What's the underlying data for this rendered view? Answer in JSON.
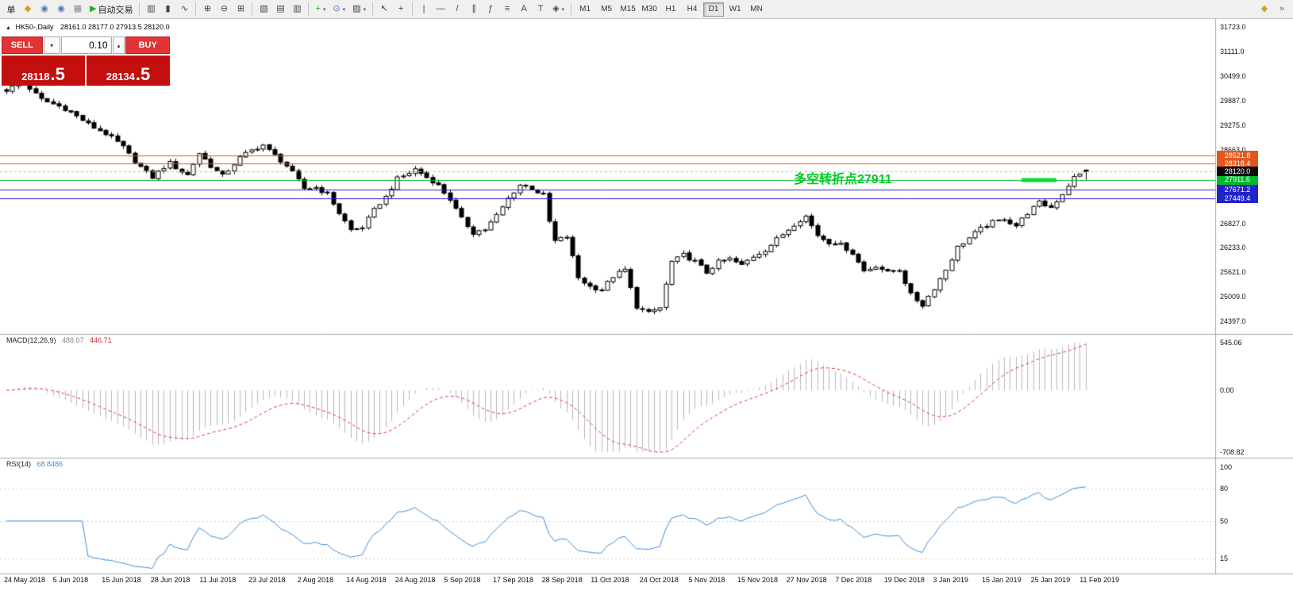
{
  "toolbar": {
    "groups": [
      {
        "items": [
          {
            "name": "new-order-button",
            "label": "单"
          },
          {
            "name": "new-chart-icon",
            "glyph": "◆",
            "color": "#d79b20"
          },
          {
            "name": "market-watch-icon",
            "glyph": "◉",
            "color": "#4a78b8"
          },
          {
            "name": "navigator-icon",
            "glyph": "◉",
            "color": "#4a78b8"
          },
          {
            "name": "terminal-icon",
            "glyph": "▦",
            "color": "#8a8a8a"
          },
          {
            "name": "autotrading-button",
            "glyph": "▶",
            "color": "#1fae1f",
            "label": "自动交易"
          }
        ]
      },
      {
        "items": [
          {
            "name": "bar-chart-icon",
            "glyph": "▥"
          },
          {
            "name": "candlestick-chart-icon",
            "glyph": "▮"
          },
          {
            "name": "line-chart-icon",
            "glyph": "∿"
          }
        ]
      },
      {
        "items": [
          {
            "name": "zoom-in-icon",
            "glyph": "⊕"
          },
          {
            "name": "zoom-out-icon",
            "glyph": "⊖"
          },
          {
            "name": "tile-windows-icon",
            "glyph": "⊞"
          }
        ]
      },
      {
        "items": [
          {
            "name": "cascade-windows-icon",
            "glyph": "▧"
          },
          {
            "name": "tile-horizontal-icon",
            "glyph": "▤"
          },
          {
            "name": "tile-vertical-icon",
            "glyph": "▥"
          }
        ]
      },
      {
        "items": [
          {
            "name": "add-indicator-button",
            "glyph": "+",
            "color": "#1fae1f",
            "dropdown": true
          },
          {
            "name": "periods-button",
            "glyph": "⊙",
            "color": "#4a78b8",
            "dropdown": true
          },
          {
            "name": "template-button",
            "glyph": "▨",
            "dropdown": true
          }
        ]
      },
      {
        "items": [
          {
            "name": "cursor-icon",
            "glyph": "↖"
          },
          {
            "name": "crosshair-icon",
            "glyph": "+"
          }
        ]
      },
      {
        "items": [
          {
            "name": "vertical-line-icon",
            "glyph": "|"
          },
          {
            "name": "horizontal-line-icon",
            "glyph": "—"
          },
          {
            "name": "trendline-icon",
            "glyph": "/"
          },
          {
            "name": "equidistant-channel-icon",
            "glyph": "∥"
          },
          {
            "name": "fibonacci-icon",
            "glyph": "ƒ"
          },
          {
            "name": "grid-tool-icon",
            "glyph": "≡"
          },
          {
            "name": "text-icon",
            "glyph": "A"
          },
          {
            "name": "text-label-icon",
            "glyph": "T"
          },
          {
            "name": "arrows-shapes-icon",
            "glyph": "◈",
            "dropdown": true
          }
        ]
      }
    ],
    "timeframes": {
      "items": [
        "M1",
        "M5",
        "M15",
        "M30",
        "H1",
        "H4",
        "D1",
        "W1",
        "MN"
      ],
      "active": "D1"
    },
    "right_icons": [
      {
        "name": "pin-chart-icon",
        "glyph": "◆",
        "color": "#d79b20"
      },
      {
        "name": "scroll-to-end-icon",
        "glyph": "»",
        "color": "#666666"
      }
    ]
  },
  "trade_panel": {
    "sell_label": "SELL",
    "buy_label": "BUY",
    "volume": "0.10",
    "vol_down": "▾",
    "vol_up": "▴",
    "sell_price_int": "28118",
    "sell_price_dec": ".5",
    "buy_price_int": "28134",
    "buy_price_dec": ".5"
  },
  "chart": {
    "marker": "▲",
    "title": "HK50-,Daily",
    "ohlc_text": "28161.0 28177.0 27913.5 28120.0",
    "annotation": {
      "text": "多空转折点27911",
      "price": 27911.6,
      "color": "#00cc22"
    },
    "current_price": {
      "label": "28120.0",
      "value": 28120.0,
      "badge_bg": "#0a0a0a"
    },
    "levels": [
      {
        "label": "28521.8",
        "value": 28521.8,
        "color": "#e2571e"
      },
      {
        "label": "28318.4",
        "value": 28318.4,
        "color": "#e2571e"
      },
      {
        "label": "27911.6",
        "value": 27911.6,
        "color": "#00b82e"
      },
      {
        "label": "27671.2",
        "value": 27671.2,
        "color": "#2222cc"
      },
      {
        "label": "27449.4",
        "value": 27449.4,
        "color": "#2222cc"
      }
    ],
    "highlight_segment": {
      "price": 27911.6,
      "from_bar": 174,
      "to_bar": 180,
      "color": "#00e032"
    },
    "y_axis_labels": [
      "31723.0",
      "31111.0",
      "30499.0",
      "29887.0",
      "29275.0",
      "28663.0",
      "26827.0",
      "26233.0",
      "25621.0",
      "25009.0",
      "24397.0"
    ],
    "x_axis_labels": [
      "24 May 2018",
      "5 Jun 2018",
      "15 Jun 2018",
      "28 Jun 2018",
      "11 Jul 2018",
      "23 Jul 2018",
      "2 Aug 2018",
      "14 Aug 2018",
      "24 Aug 2018",
      "5 Sep 2018",
      "17 Sep 2018",
      "28 Sep 2018",
      "11 Oct 2018",
      "24 Oct 2018",
      "5 Nov 2018",
      "15 Nov 2018",
      "27 Nov 2018",
      "7 Dec 2018",
      "19 Dec 2018",
      "3 Jan 2019",
      "15 Jan 2019",
      "25 Jan 2019",
      "11 Feb 2019"
    ]
  },
  "indicators": {
    "macd": {
      "name": "MACD(12,26,9)",
      "value": "488.07",
      "signal": "446.71",
      "axis_labels": [
        "545.06",
        "0.00",
        "-708.82"
      ],
      "axis_max": 545.06,
      "axis_min": -708.82
    },
    "rsi": {
      "name": "RSI(14)",
      "value": "68.8486",
      "axis_labels": [
        "100",
        "80",
        "50",
        "15"
      ],
      "levels": [
        80,
        50,
        15
      ],
      "scale_min": 5,
      "scale_max": 105
    }
  },
  "chart_data": {
    "type": "candlestick",
    "symbol": "HK50-",
    "timeframe": "Daily",
    "bars": 186,
    "visible_price_range": [
      24100,
      31920
    ],
    "price_anchors": [
      [
        0,
        30150
      ],
      [
        3,
        30320
      ],
      [
        6,
        29950
      ],
      [
        9,
        29730
      ],
      [
        13,
        29430
      ],
      [
        17,
        29040
      ],
      [
        20,
        28740
      ],
      [
        23,
        28250
      ],
      [
        25,
        27950
      ],
      [
        28,
        28350
      ],
      [
        31,
        28050
      ],
      [
        33,
        28550
      ],
      [
        35,
        28250
      ],
      [
        37,
        28050
      ],
      [
        40,
        28450
      ],
      [
        44,
        28800
      ],
      [
        46,
        28550
      ],
      [
        48,
        28250
      ],
      [
        51,
        27700
      ],
      [
        53,
        27760
      ],
      [
        55,
        27560
      ],
      [
        57,
        27060
      ],
      [
        59,
        26670
      ],
      [
        61,
        26770
      ],
      [
        63,
        27160
      ],
      [
        65,
        27460
      ],
      [
        67,
        27950
      ],
      [
        70,
        28200
      ],
      [
        72,
        27950
      ],
      [
        74,
        27760
      ],
      [
        76,
        27460
      ],
      [
        78,
        26960
      ],
      [
        80,
        26570
      ],
      [
        82,
        26670
      ],
      [
        84,
        27060
      ],
      [
        86,
        27460
      ],
      [
        88,
        27760
      ],
      [
        90,
        27700
      ],
      [
        92,
        27560
      ],
      [
        93,
        26900
      ],
      [
        94,
        26400
      ],
      [
        96,
        26470
      ],
      [
        98,
        25480
      ],
      [
        100,
        25290
      ],
      [
        102,
        25190
      ],
      [
        104,
        25480
      ],
      [
        106,
        25680
      ],
      [
        108,
        24790
      ],
      [
        110,
        24600
      ],
      [
        112,
        24700
      ],
      [
        114,
        25880
      ],
      [
        116,
        26080
      ],
      [
        118,
        25880
      ],
      [
        120,
        25580
      ],
      [
        122,
        25880
      ],
      [
        124,
        25980
      ],
      [
        126,
        25780
      ],
      [
        128,
        25980
      ],
      [
        130,
        26180
      ],
      [
        132,
        26470
      ],
      [
        134,
        26670
      ],
      [
        137,
        27000
      ],
      [
        139,
        26570
      ],
      [
        141,
        26370
      ],
      [
        143,
        26270
      ],
      [
        145,
        26080
      ],
      [
        147,
        25680
      ],
      [
        149,
        25780
      ],
      [
        151,
        25580
      ],
      [
        153,
        25680
      ],
      [
        155,
        25090
      ],
      [
        157,
        24800
      ],
      [
        159,
        25190
      ],
      [
        161,
        25680
      ],
      [
        163,
        26270
      ],
      [
        165,
        26470
      ],
      [
        167,
        26670
      ],
      [
        169,
        26870
      ],
      [
        171,
        26970
      ],
      [
        173,
        26770
      ],
      [
        175,
        27060
      ],
      [
        177,
        27360
      ],
      [
        179,
        27260
      ],
      [
        181,
        27560
      ],
      [
        183,
        27950
      ],
      [
        185,
        28120
      ]
    ],
    "last_bar": {
      "open": 28161.0,
      "high": 28177.0,
      "low": 27913.5,
      "close": 28120.0
    }
  }
}
